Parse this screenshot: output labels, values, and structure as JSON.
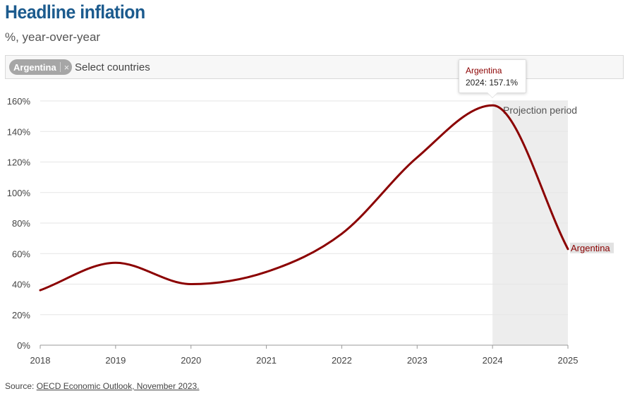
{
  "header": {
    "title": "Headline inflation",
    "subtitle": "%, year-over-year"
  },
  "filter": {
    "chip_label": "Argentina",
    "chip_remove_glyph": "×",
    "placeholder": "Select countries"
  },
  "tooltip": {
    "series": "Argentina",
    "text": "2024: 157.1%"
  },
  "source": {
    "prefix": "Source: ",
    "link_text": "OECD Economic Outlook, November 2023."
  },
  "colors": {
    "title": "#1c5b8e",
    "series": "#8b0000",
    "projection_band": "#ededed"
  },
  "chart_data": {
    "type": "line",
    "x": [
      2018,
      2019,
      2020,
      2021,
      2022,
      2023,
      2024,
      2025
    ],
    "series": [
      {
        "name": "Argentina",
        "values": [
          36,
          54,
          40,
          48,
          73,
          123,
          157.1,
          63
        ]
      }
    ],
    "ylim": [
      0,
      160
    ],
    "yticks": [
      "0%",
      "20%",
      "40%",
      "60%",
      "80%",
      "100%",
      "120%",
      "140%",
      "160%"
    ],
    "xticks": [
      "2018",
      "2019",
      "2020",
      "2021",
      "2022",
      "2023",
      "2024",
      "2025"
    ],
    "xlim": [
      2018,
      2025
    ],
    "projection": {
      "label": "Projection period",
      "from": 2024,
      "to": 2025
    },
    "end_label": "Argentina",
    "grid": true
  }
}
